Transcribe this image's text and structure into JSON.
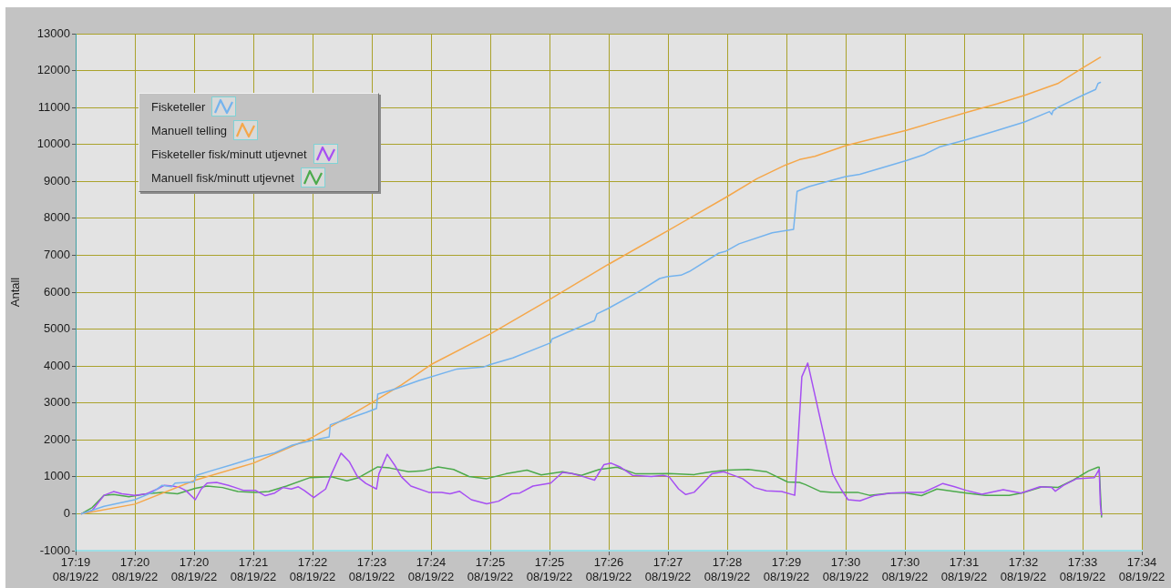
{
  "chart_data": {
    "type": "line",
    "ylabel": "Antall",
    "legend": "top left",
    "grid": true,
    "marker": "none",
    "line_style": "solid",
    "xlim": [
      "--08-19T17:19:10",
      "--08-19T17:34:10"
    ],
    "xticks": [
      {
        "value": "--08-19T17:19:10",
        "label": "17:19\n08/19/22"
      },
      {
        "value": "--08-19T17:20:00",
        "label": "17:20\n08/19/22"
      },
      {
        "value": "--08-19T17:20:50",
        "label": "17:20\n08/19/22"
      },
      {
        "value": "--08-19T17:21:40",
        "label": "17:21\n08/19/22"
      },
      {
        "value": "--08-19T17:22:30",
        "label": "17:22\n08/19/22"
      },
      {
        "value": "--08-19T17:23:20",
        "label": "17:23\n08/19/22"
      },
      {
        "value": "--08-19T17:24:10",
        "label": "17:24\n08/19/22"
      },
      {
        "value": "--08-19T17:25:00",
        "label": "17:25\n08/19/22"
      },
      {
        "value": "--08-19T17:25:50",
        "label": "17:25\n08/19/22"
      },
      {
        "value": "--08-19T17:26:40",
        "label": "17:26\n08/19/22"
      },
      {
        "value": "--08-19T17:27:30",
        "label": "17:27\n08/19/22"
      },
      {
        "value": "--08-19T17:28:20",
        "label": "17:28\n08/19/22"
      },
      {
        "value": "--08-19T17:29:10",
        "label": "17:29\n08/19/22"
      },
      {
        "value": "--08-19T17:30:00",
        "label": "17:30\n08/19/22"
      },
      {
        "value": "--08-19T17:30:50",
        "label": "17:30\n08/19/22"
      },
      {
        "value": "--08-19T17:31:40",
        "label": "17:31\n08/19/22"
      },
      {
        "value": "--08-19T17:32:30",
        "label": "17:32\n08/19/22"
      },
      {
        "value": "--08-19T17:33:20",
        "label": "17:33\n08/19/22"
      },
      {
        "value": "--08-19T17:34:10",
        "label": "17:34\n08/19/22"
      }
    ],
    "ylim": [
      -1000,
      13000
    ],
    "yticks": [
      -1000,
      0,
      1000,
      2000,
      3000,
      4000,
      5000,
      6000,
      7000,
      8000,
      9000,
      10000,
      11000,
      12000,
      13000
    ],
    "series": [
      {
        "name": "Fisketeller",
        "color": "#74b3ee",
        "x": [
          "--08-19T17:19:15",
          "--08-19T17:19:34",
          "--08-19T17:20:00",
          "--08-19T17:20:15",
          "--08-19T17:20:23",
          "--08-19T17:20:31",
          "--08-19T17:20:34",
          "--08-19T17:20:50",
          "--08-19T17:20:52",
          "--08-19T17:21:04",
          "--08-19T17:21:22",
          "--08-19T17:21:40",
          "--08-19T17:21:58",
          "--08-19T17:22:13",
          "--08-19T17:22:30",
          "--08-19T17:22:44",
          "--08-19T17:22:45",
          "--08-19T17:22:59",
          "--08-19T17:23:15",
          "--08-19T17:23:24",
          "--08-19T17:23:25",
          "--08-19T17:23:40",
          "--08-19T17:24:00",
          "--08-19T17:24:32",
          "--08-19T17:24:54",
          "--08-19T17:25:00",
          "--08-19T17:25:19",
          "--08-19T17:25:51",
          "--08-19T17:25:52",
          "--08-19T17:26:28",
          "--08-19T17:26:30",
          "--08-19T17:26:39",
          "--08-19T17:27:05",
          "--08-19T17:27:23",
          "--08-19T17:27:29",
          "--08-19T17:27:41",
          "--08-19T17:27:48",
          "--08-19T17:28:13",
          "--08-19T17:28:19",
          "--08-19T17:28:30",
          "--08-19T17:28:58",
          "--08-19T17:29:16",
          "--08-19T17:29:19",
          "--08-19T17:29:29",
          "--08-19T17:29:47",
          "--08-19T17:30:00",
          "--08-19T17:30:12",
          "--08-19T17:30:51",
          "--08-19T17:31:06",
          "--08-19T17:31:19",
          "--08-19T17:31:42",
          "--08-19T17:32:08",
          "--08-19T17:32:31",
          "--08-19T17:32:52",
          "--08-19T17:32:54",
          "--08-19T17:32:55",
          "--08-19T17:32:59",
          "--08-19T17:33:20",
          "--08-19T17:33:31",
          "--08-19T17:33:33",
          "--08-19T17:33:35"
        ],
        "values": [
          0,
          200,
          380,
          580,
          770,
          730,
          830,
          860,
          1040,
          1160,
          1330,
          1510,
          1650,
          1860,
          1990,
          2080,
          2410,
          2560,
          2740,
          2850,
          3240,
          3380,
          3610,
          3920,
          3970,
          4040,
          4220,
          4630,
          4730,
          5230,
          5410,
          5550,
          6010,
          6370,
          6420,
          6460,
          6560,
          7060,
          7110,
          7310,
          7610,
          7700,
          8730,
          8860,
          9020,
          9130,
          9190,
          9560,
          9720,
          9930,
          10130,
          10380,
          10610,
          10890,
          10810,
          10910,
          11000,
          11330,
          11490,
          11650,
          11680
        ]
      },
      {
        "name": "Manuell telling",
        "color": "#f5a74a",
        "x": [
          "--08-19T17:19:15",
          "--08-19T17:20:00",
          "--08-19T17:20:51",
          "--08-19T17:21:40",
          "--08-19T17:22:30",
          "--08-19T17:23:20",
          "--08-19T17:23:45",
          "--08-19T17:24:10",
          "--08-19T17:25:00",
          "--08-19T17:25:49",
          "--08-19T17:26:39",
          "--08-19T17:27:29",
          "--08-19T17:28:19",
          "--08-19T17:28:45",
          "--08-19T17:29:09",
          "--08-19T17:29:21",
          "--08-19T17:29:34",
          "--08-19T17:30:00",
          "--08-19T17:30:25",
          "--08-19T17:30:51",
          "--08-19T17:31:17",
          "--08-19T17:31:42",
          "--08-19T17:32:08",
          "--08-19T17:32:31",
          "--08-19T17:32:59",
          "--08-19T17:33:20",
          "--08-19T17:33:35"
        ],
        "values": [
          0,
          260,
          910,
          1370,
          2070,
          3010,
          3490,
          4040,
          4870,
          5780,
          6740,
          7650,
          8570,
          9070,
          9440,
          9590,
          9680,
          9970,
          10170,
          10380,
          10630,
          10870,
          11100,
          11330,
          11650,
          12070,
          12360
        ]
      },
      {
        "name": "Fisketeller fisk/minutt utjevnet",
        "color": "#a64ff2",
        "x": [
          "--08-19T17:19:15",
          "--08-19T17:19:24",
          "--08-19T17:19:34",
          "--08-19T17:19:42",
          "--08-19T17:19:49",
          "--08-19T17:20:00",
          "--08-19T17:20:10",
          "--08-19T17:20:19",
          "--08-19T17:20:25",
          "--08-19T17:20:32",
          "--08-19T17:20:38",
          "--08-19T17:20:43",
          "--08-19T17:20:51",
          "--08-19T17:20:56",
          "--08-19T17:21:01",
          "--08-19T17:21:09",
          "--08-19T17:21:19",
          "--08-19T17:21:32",
          "--08-19T17:21:42",
          "--08-19T17:21:50",
          "--08-19T17:21:58",
          "--08-19T17:22:05",
          "--08-19T17:22:12",
          "--08-19T17:22:18",
          "--08-19T17:22:23",
          "--08-19T17:22:31",
          "--08-19T17:22:41",
          "--08-19T17:22:46",
          "--08-19T17:22:54",
          "--08-19T17:23:01",
          "--08-19T17:23:08",
          "--08-19T17:23:15",
          "--08-19T17:23:24",
          "--08-19T17:23:26",
          "--08-19T17:23:33",
          "--08-19T17:23:39",
          "--08-19T17:23:45",
          "--08-19T17:23:53",
          "--08-19T17:24:08",
          "--08-19T17:24:19",
          "--08-19T17:24:26",
          "--08-19T17:24:34",
          "--08-19T17:24:44",
          "--08-19T17:24:57",
          "--08-19T17:25:07",
          "--08-19T17:25:18",
          "--08-19T17:25:25",
          "--08-19T17:25:36",
          "--08-19T17:25:51",
          "--08-19T17:26:01",
          "--08-19T17:26:09",
          "--08-19T17:26:19",
          "--08-19T17:26:28",
          "--08-19T17:26:36",
          "--08-19T17:26:42",
          "--08-19T17:26:50",
          "--08-19T17:27:00",
          "--08-19T17:27:16",
          "--08-19T17:27:26",
          "--08-19T17:27:31",
          "--08-19T17:27:39",
          "--08-19T17:27:45",
          "--08-19T17:27:52",
          "--08-19T17:28:07",
          "--08-19T17:28:17",
          "--08-19T17:28:22",
          "--08-19T17:28:33",
          "--08-19T17:28:43",
          "--08-19T17:28:53",
          "--08-19T17:29:06",
          "--08-19T17:29:17",
          "--08-19T17:29:20",
          "--08-19T17:29:23",
          "--08-19T17:29:28",
          "--08-19T17:29:34",
          "--08-19T17:29:42",
          "--08-19T17:29:49",
          "--08-19T17:29:56",
          "--08-19T17:30:02",
          "--08-19T17:30:12",
          "--08-19T17:30:25",
          "--08-19T17:30:38",
          "--08-19T17:30:51",
          "--08-19T17:31:06",
          "--08-19T17:31:22",
          "--08-19T17:31:32",
          "--08-19T17:31:42",
          "--08-19T17:31:55",
          "--08-19T17:32:13",
          "--08-19T17:32:28",
          "--08-19T17:32:44",
          "--08-19T17:32:54",
          "--08-19T17:32:57",
          "--08-19T17:33:04",
          "--08-19T17:33:15",
          "--08-19T17:33:30",
          "--08-19T17:33:34",
          "--08-19T17:33:35",
          "--08-19T17:33:36"
        ],
        "values": [
          0,
          90,
          500,
          600,
          540,
          500,
          540,
          670,
          770,
          750,
          710,
          630,
          380,
          670,
          830,
          850,
          770,
          630,
          630,
          490,
          560,
          710,
          670,
          730,
          630,
          440,
          670,
          1080,
          1640,
          1410,
          1000,
          820,
          670,
          1080,
          1610,
          1330,
          1000,
          750,
          580,
          580,
          540,
          610,
          380,
          270,
          340,
          540,
          560,
          750,
          830,
          1120,
          1090,
          1000,
          910,
          1330,
          1370,
          1260,
          1040,
          1010,
          1040,
          1000,
          670,
          520,
          580,
          1080,
          1140,
          1080,
          950,
          710,
          620,
          600,
          500,
          2070,
          3710,
          4080,
          3220,
          2070,
          1080,
          670,
          380,
          350,
          500,
          560,
          580,
          580,
          820,
          730,
          630,
          530,
          650,
          560,
          730,
          710,
          610,
          770,
          950,
          980,
          1200,
          250,
          -30
        ]
      },
      {
        "name": "Manuell fisk/minutt utjevnet",
        "color": "#4caa4c",
        "x": [
          "--08-19T17:19:15",
          "--08-19T17:19:24",
          "--08-19T17:19:34",
          "--08-19T17:19:42",
          "--08-19T17:19:55",
          "--08-19T17:20:10",
          "--08-19T17:20:23",
          "--08-19T17:20:36",
          "--08-19T17:20:51",
          "--08-19T17:21:01",
          "--08-19T17:21:14",
          "--08-19T17:21:27",
          "--08-19T17:21:42",
          "--08-19T17:21:53",
          "--08-19T17:22:08",
          "--08-19T17:22:28",
          "--08-19T17:22:46",
          "--08-19T17:22:59",
          "--08-19T17:23:09",
          "--08-19T17:23:25",
          "--08-19T17:23:35",
          "--08-19T17:23:51",
          "--08-19T17:24:03",
          "--08-19T17:24:16",
          "--08-19T17:24:29",
          "--08-19T17:24:42",
          "--08-19T17:24:57",
          "--08-19T17:25:13",
          "--08-19T17:25:31",
          "--08-19T17:25:43",
          "--08-19T17:26:01",
          "--08-19T17:26:17",
          "--08-19T17:26:32",
          "--08-19T17:26:47",
          "--08-19T17:27:03",
          "--08-19T17:27:16",
          "--08-19T17:27:31",
          "--08-19T17:27:52",
          "--08-19T17:28:07",
          "--08-19T17:28:20",
          "--08-19T17:28:38",
          "--08-19T17:28:53",
          "--08-19T17:29:11",
          "--08-19T17:29:21",
          "--08-19T17:29:26",
          "--08-19T17:29:39",
          "--08-19T17:29:49",
          "--08-19T17:30:10",
          "--08-19T17:30:20",
          "--08-19T17:30:38",
          "--08-19T17:30:51",
          "--08-19T17:31:04",
          "--08-19T17:31:17",
          "--08-19T17:31:32",
          "--08-19T17:31:42",
          "--08-19T17:31:58",
          "--08-19T17:32:18",
          "--08-19T17:32:31",
          "--08-19T17:32:46",
          "--08-19T17:32:59",
          "--08-19T17:33:12",
          "--08-19T17:33:25",
          "--08-19T17:33:33",
          "--08-19T17:33:34",
          "--08-19T17:33:36"
        ],
        "values": [
          0,
          170,
          500,
          520,
          460,
          540,
          580,
          540,
          690,
          750,
          710,
          600,
          580,
          600,
          750,
          980,
          1000,
          890,
          980,
          1270,
          1240,
          1140,
          1160,
          1270,
          1200,
          1010,
          950,
          1080,
          1180,
          1050,
          1140,
          1040,
          1200,
          1260,
          1080,
          1080,
          1090,
          1060,
          1140,
          1180,
          1200,
          1140,
          860,
          850,
          790,
          600,
          580,
          580,
          500,
          560,
          560,
          490,
          670,
          600,
          560,
          500,
          500,
          580,
          730,
          710,
          910,
          1160,
          1260,
          1260,
          -90
        ]
      }
    ]
  }
}
